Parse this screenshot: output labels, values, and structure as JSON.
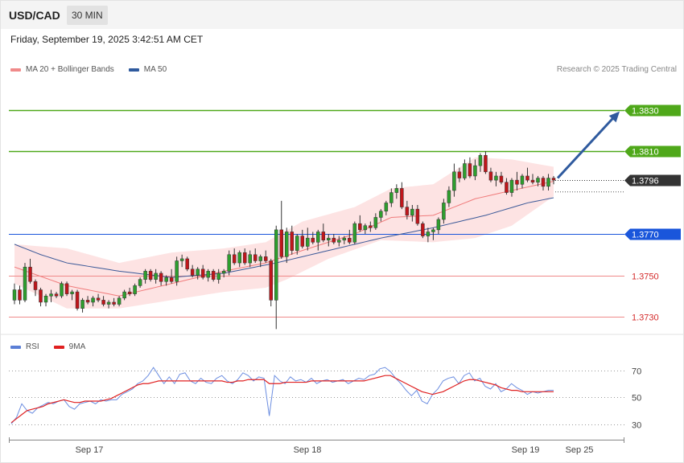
{
  "header": {
    "symbol": "USD/CAD",
    "timeframe": "30 MIN"
  },
  "datetime": "Friday, September 19, 2025 3:42:51 AM CET",
  "credit": "Research © 2025 Trading Central",
  "colors": {
    "up": "#2e9e2e",
    "down": "#c0161b",
    "ma20": "#f07b7b",
    "band_fill": "#fde3e3",
    "ma50": "#3b5998",
    "resistance": "#4fa81a",
    "pivot": "#1a56db",
    "support": "#f08a8a",
    "current": "#333333",
    "arrow": "#2f5a9e",
    "rsi": "#6b8de0",
    "rsi_ma": "#e02020"
  },
  "legend_main": [
    {
      "label": "MA 20 + Bollinger Bands",
      "color": "#f08a8a"
    },
    {
      "label": "MA 50",
      "color": "#2f5a9e"
    }
  ],
  "legend_rsi": [
    {
      "label": "RSI",
      "color": "#5b7fd6"
    },
    {
      "label": "9MA",
      "color": "#e02020"
    }
  ],
  "chart_data": {
    "type": "candlestick",
    "ylim": [
      1.3723,
      1.3845
    ],
    "xlabels": [
      "Sep 17",
      "Sep 18",
      "Sep 19",
      "Sep 25"
    ],
    "levels": [
      {
        "value": 1.383,
        "label": "1.3830",
        "kind": "resistance"
      },
      {
        "value": 1.381,
        "label": "1.3810",
        "kind": "resistance"
      },
      {
        "value": 1.3796,
        "label": "1.3796",
        "kind": "current"
      },
      {
        "value": 1.377,
        "label": "1.3770",
        "kind": "pivot"
      },
      {
        "value": 1.375,
        "label": "1.3750",
        "kind": "support"
      },
      {
        "value": 1.373,
        "label": "1.3730",
        "kind": "support"
      }
    ],
    "candles": [
      [
        1.3738,
        1.3746,
        1.3736,
        1.3743
      ],
      [
        1.3743,
        1.3745,
        1.3736,
        1.3738
      ],
      [
        1.3738,
        1.3756,
        1.3737,
        1.3754
      ],
      [
        1.3754,
        1.3758,
        1.3746,
        1.3747
      ],
      [
        1.3747,
        1.3748,
        1.374,
        1.3743
      ],
      [
        1.3743,
        1.3744,
        1.3735,
        1.3737
      ],
      [
        1.3737,
        1.3741,
        1.3735,
        1.374
      ],
      [
        1.374,
        1.3743,
        1.3737,
        1.3741
      ],
      [
        1.3741,
        1.3742,
        1.3739,
        1.374
      ],
      [
        1.374,
        1.3747,
        1.3739,
        1.3746
      ],
      [
        1.3746,
        1.3747,
        1.374,
        1.3741
      ],
      [
        1.3741,
        1.3743,
        1.3738,
        1.3742
      ],
      [
        1.3742,
        1.3743,
        1.3733,
        1.3734
      ],
      [
        1.3734,
        1.3739,
        1.3732,
        1.3738
      ],
      [
        1.3738,
        1.374,
        1.3736,
        1.3737
      ],
      [
        1.3737,
        1.374,
        1.3735,
        1.3739
      ],
      [
        1.3739,
        1.3741,
        1.3737,
        1.3738
      ],
      [
        1.3738,
        1.374,
        1.3735,
        1.3736
      ],
      [
        1.3736,
        1.3738,
        1.3734,
        1.3737
      ],
      [
        1.3737,
        1.3739,
        1.3735,
        1.3736
      ],
      [
        1.3736,
        1.374,
        1.3735,
        1.3739
      ],
      [
        1.3739,
        1.3743,
        1.3738,
        1.3742
      ],
      [
        1.3742,
        1.3744,
        1.374,
        1.3741
      ],
      [
        1.3741,
        1.3746,
        1.374,
        1.3745
      ],
      [
        1.3745,
        1.3749,
        1.3744,
        1.3748
      ],
      [
        1.3748,
        1.3753,
        1.3746,
        1.3752
      ],
      [
        1.3752,
        1.3753,
        1.3747,
        1.3748
      ],
      [
        1.3748,
        1.3753,
        1.3746,
        1.3751
      ],
      [
        1.3751,
        1.3752,
        1.3745,
        1.3747
      ],
      [
        1.3747,
        1.375,
        1.3745,
        1.3749
      ],
      [
        1.3749,
        1.3753,
        1.3746,
        1.3747
      ],
      [
        1.3747,
        1.3759,
        1.3745,
        1.3757
      ],
      [
        1.3757,
        1.376,
        1.3754,
        1.3758
      ],
      [
        1.3758,
        1.3759,
        1.3752,
        1.3753
      ],
      [
        1.3753,
        1.3755,
        1.3749,
        1.375
      ],
      [
        1.375,
        1.3754,
        1.3748,
        1.3753
      ],
      [
        1.3753,
        1.3755,
        1.3748,
        1.3749
      ],
      [
        1.3749,
        1.3753,
        1.3747,
        1.3752
      ],
      [
        1.3752,
        1.3753,
        1.3747,
        1.3748
      ],
      [
        1.3748,
        1.3753,
        1.3746,
        1.3751
      ],
      [
        1.3751,
        1.3753,
        1.3749,
        1.3752
      ],
      [
        1.3752,
        1.3762,
        1.375,
        1.376
      ],
      [
        1.376,
        1.3763,
        1.3755,
        1.3756
      ],
      [
        1.3756,
        1.3762,
        1.3754,
        1.3761
      ],
      [
        1.3761,
        1.3763,
        1.3755,
        1.3756
      ],
      [
        1.3756,
        1.3762,
        1.3754,
        1.376
      ],
      [
        1.376,
        1.3763,
        1.3756,
        1.3757
      ],
      [
        1.3757,
        1.376,
        1.3754,
        1.3759
      ],
      [
        1.3759,
        1.3762,
        1.3756,
        1.3757
      ],
      [
        1.3757,
        1.3758,
        1.3735,
        1.3738
      ],
      [
        1.3738,
        1.3774,
        1.3724,
        1.3772
      ],
      [
        1.3772,
        1.3786,
        1.3758,
        1.3759
      ],
      [
        1.3759,
        1.3773,
        1.3756,
        1.3771
      ],
      [
        1.3771,
        1.3774,
        1.376,
        1.3762
      ],
      [
        1.3762,
        1.377,
        1.376,
        1.3769
      ],
      [
        1.3769,
        1.3772,
        1.3763,
        1.3764
      ],
      [
        1.3764,
        1.3773,
        1.3762,
        1.3768
      ],
      [
        1.3768,
        1.3771,
        1.3765,
        1.3766
      ],
      [
        1.3766,
        1.3772,
        1.3762,
        1.3771
      ],
      [
        1.3771,
        1.3775,
        1.3766,
        1.3767
      ],
      [
        1.3767,
        1.377,
        1.3764,
        1.3768
      ],
      [
        1.3768,
        1.377,
        1.3765,
        1.3766
      ],
      [
        1.3766,
        1.3769,
        1.3764,
        1.3767
      ],
      [
        1.3767,
        1.3769,
        1.3765,
        1.3768
      ],
      [
        1.3768,
        1.3772,
        1.3765,
        1.3766
      ],
      [
        1.3766,
        1.3776,
        1.3765,
        1.3775
      ],
      [
        1.3775,
        1.3779,
        1.3771,
        1.3772
      ],
      [
        1.3772,
        1.3775,
        1.377,
        1.3774
      ],
      [
        1.3774,
        1.3776,
        1.3771,
        1.3773
      ],
      [
        1.3773,
        1.378,
        1.3772,
        1.3778
      ],
      [
        1.3778,
        1.3782,
        1.3776,
        1.3781
      ],
      [
        1.3781,
        1.3786,
        1.3779,
        1.3785
      ],
      [
        1.3785,
        1.3792,
        1.3783,
        1.379
      ],
      [
        1.379,
        1.3794,
        1.3787,
        1.3792
      ],
      [
        1.3792,
        1.3795,
        1.3782,
        1.3783
      ],
      [
        1.3783,
        1.3786,
        1.3777,
        1.3779
      ],
      [
        1.3779,
        1.3784,
        1.3776,
        1.3782
      ],
      [
        1.3782,
        1.3784,
        1.3774,
        1.3775
      ],
      [
        1.3775,
        1.3776,
        1.3768,
        1.3769
      ],
      [
        1.3769,
        1.3773,
        1.3766,
        1.3771
      ],
      [
        1.3771,
        1.3773,
        1.3767,
        1.3772
      ],
      [
        1.3772,
        1.3778,
        1.377,
        1.3777
      ],
      [
        1.3777,
        1.3787,
        1.3775,
        1.3785
      ],
      [
        1.3785,
        1.3793,
        1.3783,
        1.3791
      ],
      [
        1.3791,
        1.3804,
        1.3788,
        1.38
      ],
      [
        1.38,
        1.3802,
        1.3795,
        1.3797
      ],
      [
        1.3797,
        1.3806,
        1.3796,
        1.3804
      ],
      [
        1.3804,
        1.3807,
        1.3797,
        1.3798
      ],
      [
        1.3798,
        1.3806,
        1.3796,
        1.3803
      ],
      [
        1.3803,
        1.3809,
        1.38,
        1.3808
      ],
      [
        1.3808,
        1.381,
        1.3799,
        1.38
      ],
      [
        1.38,
        1.3802,
        1.3795,
        1.3796
      ],
      [
        1.3796,
        1.38,
        1.3793,
        1.3798
      ],
      [
        1.3798,
        1.38,
        1.3794,
        1.3795
      ],
      [
        1.3795,
        1.3797,
        1.3789,
        1.379
      ],
      [
        1.379,
        1.3797,
        1.3788,
        1.3796
      ],
      [
        1.3796,
        1.38,
        1.3791,
        1.3794
      ],
      [
        1.3794,
        1.3799,
        1.3792,
        1.3798
      ],
      [
        1.3798,
        1.3802,
        1.3795,
        1.3796
      ],
      [
        1.3796,
        1.3799,
        1.3794,
        1.3795
      ],
      [
        1.3795,
        1.3798,
        1.3793,
        1.3797
      ],
      [
        1.3797,
        1.3798,
        1.3791,
        1.3793
      ],
      [
        1.3793,
        1.3799,
        1.3791,
        1.3797
      ],
      [
        1.3797,
        1.3798,
        1.3794,
        1.3796
      ]
    ],
    "bb_upper": [
      [
        0,
        1.3765
      ],
      [
        10,
        1.3763
      ],
      [
        20,
        1.3756
      ],
      [
        30,
        1.3761
      ],
      [
        40,
        1.3763
      ],
      [
        48,
        1.3766
      ],
      [
        55,
        1.3776
      ],
      [
        65,
        1.3783
      ],
      [
        72,
        1.3792
      ],
      [
        80,
        1.3794
      ],
      [
        88,
        1.3807
      ],
      [
        95,
        1.3806
      ],
      [
        104,
        1.3802
      ]
    ],
    "bb_lower": [
      [
        0,
        1.3746
      ],
      [
        10,
        1.3734
      ],
      [
        20,
        1.3734
      ],
      [
        30,
        1.3738
      ],
      [
        40,
        1.3742
      ],
      [
        48,
        1.3744
      ],
      [
        52,
        1.3748
      ],
      [
        60,
        1.3758
      ],
      [
        70,
        1.3767
      ],
      [
        80,
        1.3766
      ],
      [
        88,
        1.3768
      ],
      [
        95,
        1.3774
      ],
      [
        104,
        1.379
      ]
    ],
    "ma20": [
      [
        0,
        1.3754
      ],
      [
        10,
        1.3745
      ],
      [
        20,
        1.374
      ],
      [
        30,
        1.3746
      ],
      [
        40,
        1.3752
      ],
      [
        48,
        1.3756
      ],
      [
        55,
        1.3762
      ],
      [
        65,
        1.377
      ],
      [
        72,
        1.3778
      ],
      [
        80,
        1.3779
      ],
      [
        88,
        1.3787
      ],
      [
        95,
        1.3791
      ],
      [
        104,
        1.3796
      ]
    ],
    "ma50": [
      [
        0,
        1.3765
      ],
      [
        5,
        1.376
      ],
      [
        10,
        1.3756
      ],
      [
        20,
        1.3752
      ],
      [
        30,
        1.3749
      ],
      [
        40,
        1.3751
      ],
      [
        50,
        1.3756
      ],
      [
        60,
        1.3762
      ],
      [
        70,
        1.3768
      ],
      [
        80,
        1.3773
      ],
      [
        90,
        1.3779
      ],
      [
        98,
        1.3785
      ],
      [
        104,
        1.3788
      ]
    ],
    "forecast_arrow": {
      "from": 1.3797,
      "to": 1.383
    },
    "rsi": {
      "levels": [
        70,
        50,
        30
      ],
      "rsi": [
        30,
        35,
        45,
        40,
        38,
        42,
        44,
        46,
        45,
        47,
        48,
        43,
        41,
        45,
        46,
        47,
        45,
        48,
        47,
        48,
        48,
        52,
        54,
        56,
        60,
        62,
        66,
        72,
        66,
        60,
        65,
        60,
        67,
        68,
        62,
        60,
        64,
        61,
        60,
        64,
        66,
        62,
        60,
        63,
        68,
        66,
        62,
        65,
        64,
        36,
        66,
        62,
        60,
        65,
        62,
        63,
        61,
        64,
        60,
        62,
        63,
        61,
        62,
        63,
        60,
        62,
        64,
        63,
        66,
        67,
        71,
        72,
        69,
        64,
        60,
        55,
        51,
        55,
        47,
        45,
        52,
        56,
        62,
        64,
        65,
        60,
        66,
        68,
        62,
        64,
        58,
        56,
        60,
        54,
        56,
        60,
        57,
        55,
        52,
        54,
        53,
        54,
        55,
        55
      ],
      "rsi_ma": [
        31,
        34,
        37,
        40,
        41,
        42,
        43,
        45,
        46,
        47,
        48,
        47,
        46,
        46,
        47,
        47,
        47,
        47,
        48,
        49,
        51,
        53,
        55,
        57,
        59,
        60,
        60,
        61,
        62,
        62,
        62,
        62,
        62,
        62,
        62,
        62,
        62,
        62,
        62,
        62,
        62,
        61,
        61,
        62,
        62,
        63,
        63,
        63,
        63,
        60,
        60,
        60,
        61,
        61,
        61,
        61,
        61,
        62,
        62,
        62,
        62,
        62,
        62,
        62,
        62,
        62,
        62,
        62,
        63,
        64,
        65,
        66,
        66,
        64,
        62,
        60,
        58,
        56,
        54,
        53,
        52,
        53,
        54,
        56,
        58,
        60,
        62,
        63,
        63,
        62,
        61,
        60,
        59,
        57,
        56,
        55,
        55,
        54,
        54,
        54,
        54,
        54,
        54,
        54
      ]
    }
  }
}
